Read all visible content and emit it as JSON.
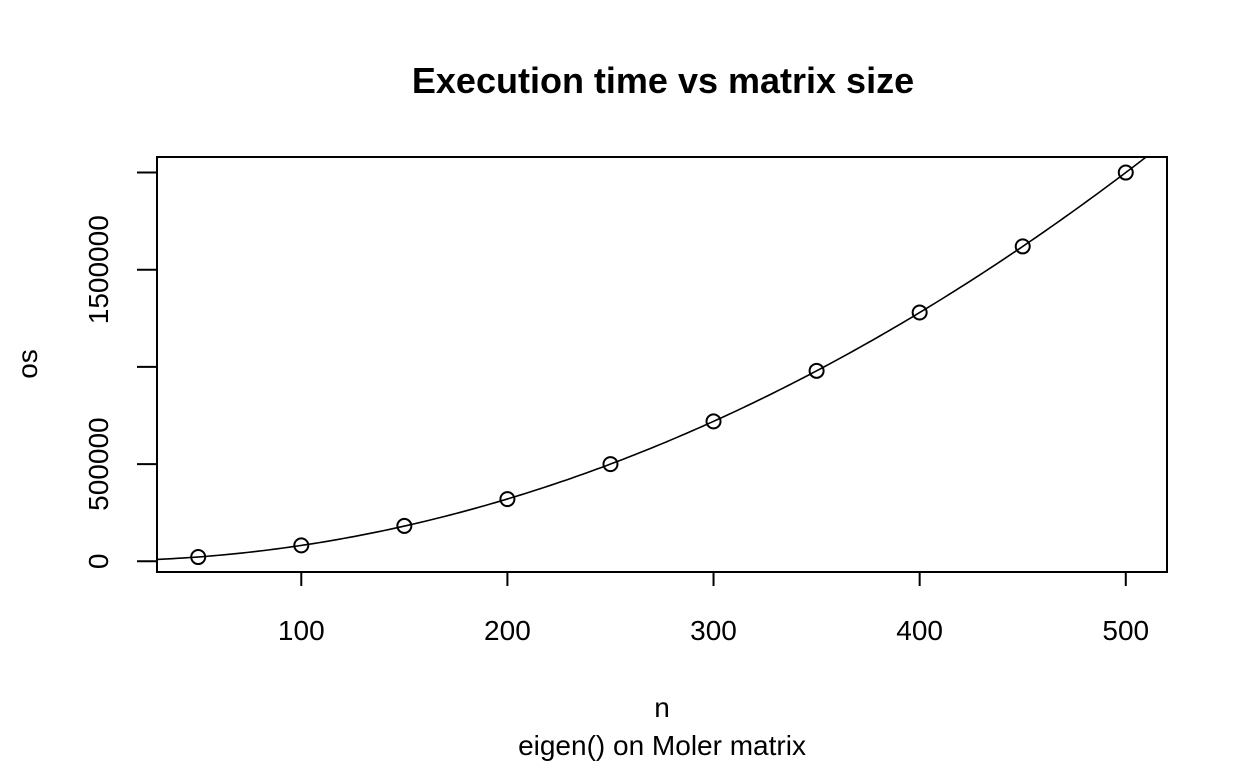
{
  "chart_data": {
    "type": "scatter",
    "title": "Execution time vs matrix size",
    "xlabel": "n",
    "ylabel": "os",
    "subtitle": "eigen() on Moler matrix",
    "x": [
      50,
      100,
      150,
      200,
      250,
      300,
      350,
      400,
      450,
      500
    ],
    "y": [
      22000,
      82000,
      182000,
      320000,
      500000,
      720000,
      980000,
      1280000,
      1620000,
      2000000
    ],
    "xlim": [
      30,
      520
    ],
    "ylim": [
      -55000,
      2080000
    ],
    "xticks": [
      100,
      200,
      300,
      400,
      500
    ],
    "yticks": [
      0,
      500000,
      1000000,
      1500000,
      2000000
    ],
    "ytick_labels": [
      "0",
      "500000",
      "",
      "1500000",
      ""
    ],
    "fit_line": "quadratic",
    "grid": false
  }
}
